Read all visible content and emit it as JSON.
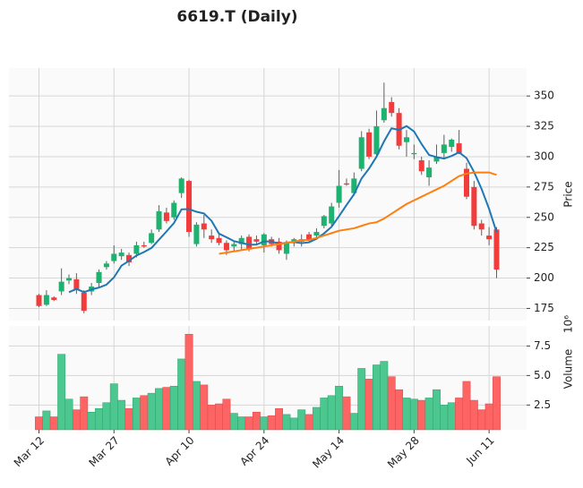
{
  "chart_data": {
    "type": "candlestick",
    "title": "6619.T (Daily)",
    "categories": [
      "Mar 12",
      null,
      null,
      null,
      null,
      null,
      null,
      null,
      null,
      null,
      "Mar 27",
      null,
      null,
      null,
      null,
      null,
      null,
      null,
      null,
      null,
      "Apr 10",
      null,
      null,
      null,
      null,
      null,
      null,
      null,
      null,
      null,
      "Apr 24",
      null,
      null,
      null,
      null,
      null,
      null,
      null,
      null,
      null,
      "May 14",
      null,
      null,
      null,
      null,
      null,
      null,
      null,
      null,
      null,
      "May 28",
      null,
      null,
      null,
      null,
      null,
      null,
      null,
      null,
      null,
      "Jun 11",
      null
    ],
    "open": [
      186,
      178,
      184,
      189,
      198,
      199,
      188,
      189,
      196,
      209,
      214,
      218,
      219,
      220,
      227,
      229,
      240,
      254,
      250,
      270,
      280,
      228,
      245,
      235,
      233,
      229,
      226,
      228,
      234,
      232,
      227,
      232,
      230,
      220,
      229,
      230,
      236,
      235,
      243,
      245,
      262,
      278,
      270,
      290,
      320,
      302,
      330,
      345,
      336,
      312,
      302,
      297,
      283,
      296,
      303,
      308,
      311,
      290,
      275,
      245,
      235,
      240
    ],
    "high": [
      187,
      190,
      185,
      208,
      203,
      204,
      190,
      196,
      207,
      214,
      227,
      224,
      221,
      230,
      230,
      240,
      260,
      258,
      264,
      283,
      281,
      246,
      252,
      240,
      236,
      231,
      231,
      235,
      236,
      235,
      237,
      234,
      233,
      231,
      233,
      236,
      238,
      241,
      252,
      262,
      289,
      282,
      287,
      321,
      323,
      338,
      361,
      349,
      340,
      322,
      310,
      300,
      297,
      310,
      318,
      315,
      322,
      295,
      280,
      248,
      242,
      242
    ],
    "low": [
      176,
      177,
      181,
      186,
      195,
      187,
      171,
      186,
      193,
      207,
      212,
      215,
      210,
      217,
      225,
      228,
      238,
      245,
      248,
      266,
      234,
      226,
      233,
      229,
      227,
      219,
      222,
      223,
      222,
      228,
      221,
      226,
      220,
      215,
      226,
      226,
      230,
      232,
      241,
      243,
      258,
      276,
      268,
      288,
      298,
      300,
      328,
      333,
      306,
      300,
      298,
      285,
      276,
      294,
      299,
      304,
      302,
      265,
      240,
      235,
      227,
      200
    ],
    "close": [
      177,
      186,
      182,
      197,
      200,
      190,
      173,
      193,
      205,
      212,
      220,
      221,
      213,
      227,
      226,
      237,
      255,
      247,
      262,
      282,
      238,
      244,
      240,
      232,
      229,
      223,
      228,
      233,
      224,
      230,
      236,
      228,
      223,
      229,
      232,
      232,
      231,
      238,
      251,
      259,
      276,
      277,
      282,
      316,
      300,
      325,
      340,
      336,
      309,
      316,
      303,
      288,
      291,
      300,
      310,
      314,
      303,
      267,
      243,
      240,
      232,
      207
    ],
    "volume": [
      1.5,
      2.0,
      1.5,
      6.8,
      3.0,
      2.1,
      3.2,
      1.9,
      2.2,
      2.7,
      4.3,
      2.9,
      2.2,
      3.1,
      3.3,
      3.5,
      3.9,
      4.0,
      4.1,
      6.4,
      8.5,
      4.5,
      4.2,
      2.5,
      2.6,
      3.0,
      1.8,
      1.5,
      1.5,
      1.9,
      1.5,
      1.6,
      2.2,
      1.7,
      1.4,
      2.1,
      1.7,
      2.3,
      3.1,
      3.3,
      4.1,
      3.2,
      1.8,
      5.6,
      4.7,
      5.9,
      6.2,
      4.9,
      3.8,
      3.1,
      3.0,
      2.9,
      3.1,
      3.8,
      2.5,
      2.7,
      3.1,
      4.5,
      2.9,
      2.1,
      2.6,
      4.9
    ],
    "mav": [
      {
        "color": "#1f77b4",
        "values": [
          null,
          null,
          null,
          null,
          188.4,
          191,
          188.4,
          190.6,
          192.2,
          194.6,
          200.6,
          210.2,
          214.2,
          218.6,
          221.4,
          224.8,
          231.6,
          238.4,
          245.4,
          256.6,
          256.8,
          254.6,
          253.2,
          247.2,
          236.6,
          233.6,
          230.4,
          229,
          227.4,
          227.6,
          230.2,
          230.2,
          228.2,
          229.2,
          229.6,
          228.8,
          229.4,
          232.4,
          236.8,
          242.2,
          251,
          260.2,
          269,
          282,
          290.2,
          300,
          312.6,
          323.4,
          322,
          325.2,
          320.8,
          310.4,
          301.4,
          299.6,
          298.4,
          300.6,
          303.6,
          298.8,
          287.4,
          273.4,
          257,
          237.8
        ]
      },
      {
        "color": "#ff7f0e",
        "values": [
          null,
          null,
          null,
          null,
          null,
          null,
          null,
          null,
          null,
          null,
          null,
          null,
          null,
          null,
          null,
          null,
          null,
          null,
          null,
          null,
          null,
          null,
          null,
          null,
          220,
          221,
          222,
          223,
          224,
          225,
          226,
          227,
          228,
          229,
          230,
          231,
          231.5,
          233,
          235,
          237,
          239,
          240,
          241,
          243,
          245,
          246,
          249,
          253,
          257,
          261,
          264,
          267,
          270,
          273,
          276,
          280,
          284,
          286,
          287,
          287,
          287,
          285
        ]
      }
    ],
    "up_color": "#1db26f",
    "down_color": "#f23c3c",
    "volume_up_color": "#4cc78f",
    "volume_down_color": "#fd6464",
    "wick_color": "#606060",
    "xlim": [
      -4,
      65
    ],
    "ylabel": "Price",
    "ylim": [
      165,
      373
    ],
    "yticks": [
      175,
      200,
      225,
      250,
      275,
      300,
      325,
      350
    ],
    "volume_label": "Volume",
    "volume_scale": "10⁶",
    "volume_ylim": [
      0.4,
      9.2
    ],
    "volume_yticks": [
      2.5,
      {
        "value": 5,
        "label": "5.0"
      },
      7.5
    ],
    "grid": true
  }
}
